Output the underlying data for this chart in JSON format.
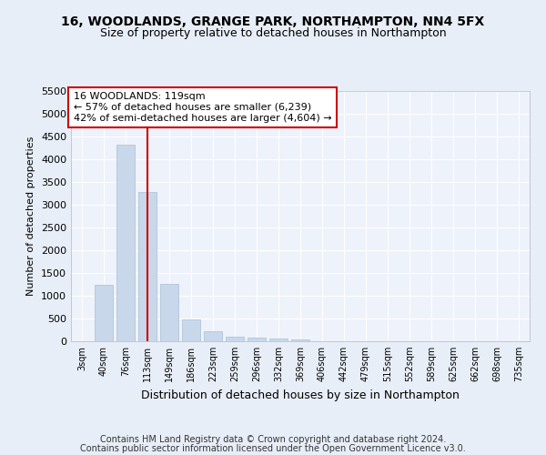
{
  "title1": "16, WOODLANDS, GRANGE PARK, NORTHAMPTON, NN4 5FX",
  "title2": "Size of property relative to detached houses in Northampton",
  "xlabel": "Distribution of detached houses by size in Northampton",
  "ylabel": "Number of detached properties",
  "categories": [
    "3sqm",
    "40sqm",
    "76sqm",
    "113sqm",
    "149sqm",
    "186sqm",
    "223sqm",
    "259sqm",
    "296sqm",
    "332sqm",
    "369sqm",
    "406sqm",
    "442sqm",
    "479sqm",
    "515sqm",
    "552sqm",
    "589sqm",
    "625sqm",
    "662sqm",
    "698sqm",
    "735sqm"
  ],
  "values": [
    0,
    1250,
    4320,
    3290,
    1270,
    490,
    225,
    100,
    75,
    55,
    45,
    0,
    0,
    0,
    0,
    0,
    0,
    0,
    0,
    0,
    0
  ],
  "bar_color": "#c8d8ea",
  "bar_edgecolor": "#a8c0d4",
  "vline_x": 3,
  "vline_color": "#cc0000",
  "annotation_text": "16 WOODLANDS: 119sqm\n← 57% of detached houses are smaller (6,239)\n42% of semi-detached houses are larger (4,604) →",
  "ylim": [
    0,
    5500
  ],
  "yticks": [
    0,
    500,
    1000,
    1500,
    2000,
    2500,
    3000,
    3500,
    4000,
    4500,
    5000,
    5500
  ],
  "bg_color": "#e8eef8",
  "plot_bg_color": "#eef2fa",
  "footer_line1": "Contains HM Land Registry data © Crown copyright and database right 2024.",
  "footer_line2": "Contains public sector information licensed under the Open Government Licence v3.0."
}
